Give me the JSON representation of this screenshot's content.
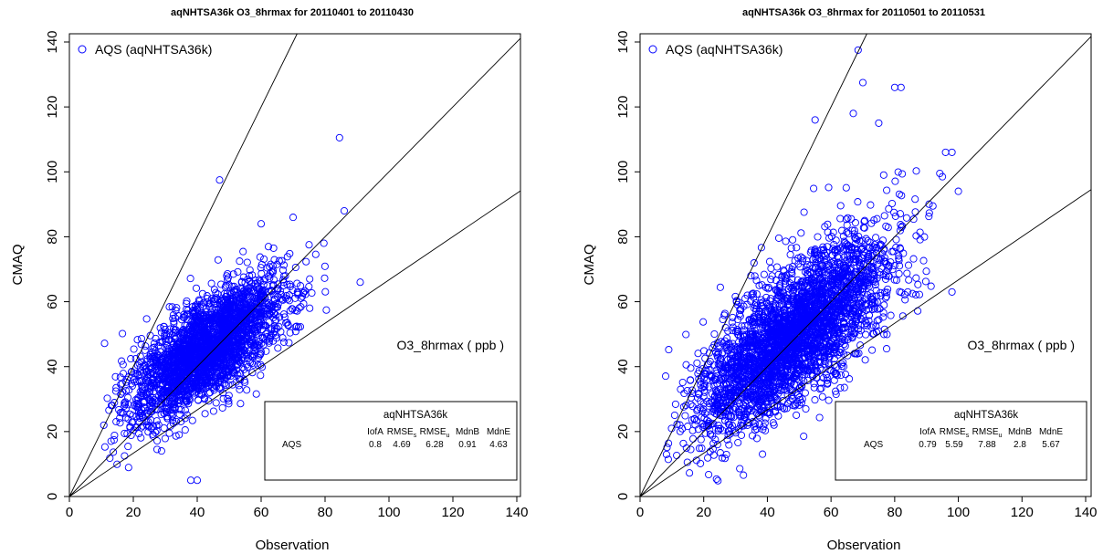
{
  "chart_data": [
    {
      "type": "scatter",
      "title": "aqNHTSA36k O3_8hrmax for 20110401 to 20110430",
      "xlabel": "Observation",
      "ylabel": "CMAQ",
      "xlim": [
        0,
        145
      ],
      "ylim": [
        0,
        145
      ],
      "xticks": [
        "0",
        "20",
        "40",
        "60",
        "80",
        "100",
        "120",
        "140"
      ],
      "yticks": [
        "0",
        "20",
        "40",
        "60",
        "80",
        "100",
        "120",
        "140"
      ],
      "legend": {
        "label": "AQS (aqNHTSA36k)",
        "position": "top-left",
        "marker": "open-circle",
        "color": "#0000ff"
      },
      "annotation": "O3_8hrmax  ( ppb )",
      "reference_lines": {
        "slopes": [
          2,
          1,
          0.667
        ]
      },
      "stats_table": {
        "title": "aqNHTSA36k",
        "columns": [
          "IofA",
          "RMSE",
          "RMSE",
          "MdnB",
          "MdnE"
        ],
        "subscripts": [
          "",
          "s",
          "u",
          "",
          ""
        ],
        "row_label": "AQS",
        "values": [
          "0.8",
          "4.69",
          "6.28",
          "0.91",
          "4.63"
        ]
      },
      "cloud": {
        "slope": 0.62,
        "intercept": 19,
        "spread": 7.5,
        "x_range": [
          10,
          92
        ],
        "x_center": 43,
        "x_sd": 12,
        "count": 2600,
        "seed": 7,
        "outliers": [
          [
            84.5,
            110.5
          ],
          [
            47,
            97.5
          ],
          [
            38,
            5
          ],
          [
            40,
            5
          ],
          [
            60,
            84
          ],
          [
            91,
            66
          ],
          [
            86,
            88
          ],
          [
            70,
            86
          ]
        ]
      },
      "series_color": "#0000ff"
    },
    {
      "type": "scatter",
      "title": "aqNHTSA36k O3_8hrmax for 20110501 to 20110531",
      "xlabel": "Observation",
      "ylabel": "CMAQ",
      "xlim": [
        0,
        145
      ],
      "ylim": [
        0,
        145
      ],
      "xticks": [
        "0",
        "20",
        "40",
        "60",
        "80",
        "100",
        "120",
        "140"
      ],
      "yticks": [
        "0",
        "20",
        "40",
        "60",
        "80",
        "100",
        "120",
        "140"
      ],
      "legend": {
        "label": "AQS (aqNHTSA36k)",
        "position": "top-left",
        "marker": "open-circle",
        "color": "#0000ff"
      },
      "annotation": "O3_8hrmax  ( ppb )",
      "reference_lines": {
        "slopes": [
          2,
          1,
          0.667
        ]
      },
      "stats_table": {
        "title": "aqNHTSA36k",
        "columns": [
          "IofA",
          "RMSE",
          "RMSE",
          "MdnB",
          "MdnE"
        ],
        "subscripts": [
          "",
          "s",
          "u",
          "",
          ""
        ],
        "row_label": "AQS",
        "values": [
          "0.79",
          "5.59",
          "7.88",
          "2.8",
          "5.67"
        ]
      },
      "cloud": {
        "slope": 0.72,
        "intercept": 15,
        "spread": 10,
        "x_range": [
          8,
          101
        ],
        "x_center": 48,
        "x_sd": 15,
        "count": 3200,
        "seed": 13,
        "outliers": [
          [
            68.5,
            137.5
          ],
          [
            70,
            127.5
          ],
          [
            80,
            126
          ],
          [
            82,
            126
          ],
          [
            67,
            118
          ],
          [
            75,
            115
          ],
          [
            55,
            116
          ],
          [
            100,
            94
          ],
          [
            96,
            106
          ],
          [
            98,
            106
          ],
          [
            98,
            63
          ],
          [
            69,
            27.5
          ]
        ]
      },
      "series_color": "#0000ff"
    }
  ]
}
